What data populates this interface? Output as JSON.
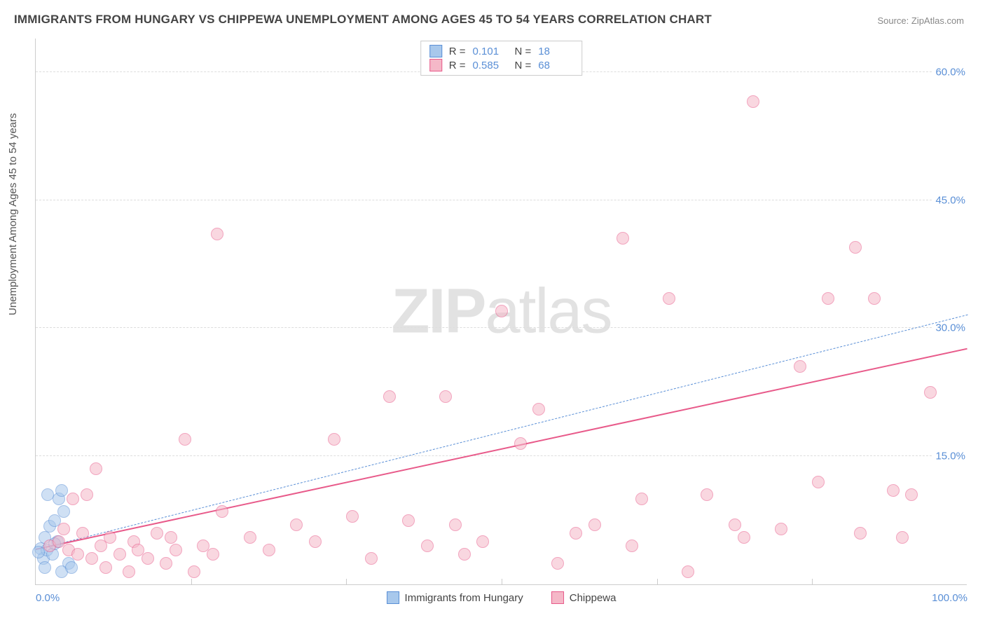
{
  "title": "IMMIGRANTS FROM HUNGARY VS CHIPPEWA UNEMPLOYMENT AMONG AGES 45 TO 54 YEARS CORRELATION CHART",
  "source": "Source: ZipAtlas.com",
  "y_axis_label": "Unemployment Among Ages 45 to 54 years",
  "watermark_bold": "ZIP",
  "watermark_thin": "atlas",
  "chart": {
    "type": "scatter",
    "xlim": [
      0,
      100
    ],
    "ylim": [
      0,
      64
    ],
    "x_ticks": [
      {
        "pos": 0,
        "label": "0.0%"
      },
      {
        "pos": 100,
        "label": "100.0%"
      }
    ],
    "x_minor_ticks": [
      16.67,
      33.33,
      50,
      66.67,
      83.33
    ],
    "y_ticks": [
      {
        "pos": 15,
        "label": "15.0%"
      },
      {
        "pos": 30,
        "label": "30.0%"
      },
      {
        "pos": 45,
        "label": "45.0%"
      },
      {
        "pos": 60,
        "label": "60.0%"
      }
    ],
    "background_color": "#ffffff",
    "grid_color": "#dddddd",
    "axis_color": "#cccccc",
    "tick_color": "#5a8fd6",
    "title_color": "#444444",
    "title_fontsize": 17,
    "label_fontsize": 15,
    "point_radius": 9,
    "point_opacity": 0.55,
    "series": [
      {
        "name": "Immigrants from Hungary",
        "color_fill": "#a8c8ec",
        "color_stroke": "#5a8fd6",
        "R": "0.101",
        "N": "18",
        "trend": {
          "x1": 0,
          "y1": 4.0,
          "x2": 100,
          "y2": 31.5,
          "dash": "6,5",
          "width": 1.5
        },
        "points": [
          [
            0.5,
            4.2
          ],
          [
            0.8,
            3.0
          ],
          [
            1.0,
            5.5
          ],
          [
            1.2,
            4.0
          ],
          [
            1.5,
            6.8
          ],
          [
            1.8,
            3.5
          ],
          [
            2.0,
            7.5
          ],
          [
            2.3,
            5.0
          ],
          [
            2.5,
            10.0
          ],
          [
            2.8,
            11.0
          ],
          [
            3.0,
            8.5
          ],
          [
            3.5,
            2.5
          ],
          [
            1.3,
            10.5
          ],
          [
            2.0,
            4.8
          ],
          [
            0.3,
            3.8
          ],
          [
            1.0,
            2.0
          ],
          [
            2.8,
            1.5
          ],
          [
            3.8,
            2.0
          ]
        ]
      },
      {
        "name": "Chippewa",
        "color_fill": "#f5b8c8",
        "color_stroke": "#e85a8a",
        "R": "0.585",
        "N": "68",
        "trend": {
          "x1": 0,
          "y1": 4.0,
          "x2": 100,
          "y2": 27.5,
          "dash": "none",
          "width": 2.5
        },
        "points": [
          [
            1.5,
            4.5
          ],
          [
            2.5,
            5.0
          ],
          [
            3.0,
            6.5
          ],
          [
            3.5,
            4.0
          ],
          [
            4.0,
            10.0
          ],
          [
            4.5,
            3.5
          ],
          [
            5.0,
            6.0
          ],
          [
            5.5,
            10.5
          ],
          [
            6.0,
            3.0
          ],
          [
            6.5,
            13.5
          ],
          [
            7.0,
            4.5
          ],
          [
            7.5,
            2.0
          ],
          [
            8.0,
            5.5
          ],
          [
            9.0,
            3.5
          ],
          [
            10.0,
            1.5
          ],
          [
            10.5,
            5.0
          ],
          [
            11.0,
            4.0
          ],
          [
            12.0,
            3.0
          ],
          [
            13.0,
            6.0
          ],
          [
            14.0,
            2.5
          ],
          [
            14.5,
            5.5
          ],
          [
            15.0,
            4.0
          ],
          [
            16.0,
            17.0
          ],
          [
            17.0,
            1.5
          ],
          [
            18.0,
            4.5
          ],
          [
            19.0,
            3.5
          ],
          [
            20.0,
            8.5
          ],
          [
            19.5,
            41.0
          ],
          [
            25.0,
            4.0
          ],
          [
            28.0,
            7.0
          ],
          [
            30.0,
            5.0
          ],
          [
            32.0,
            17.0
          ],
          [
            34.0,
            8.0
          ],
          [
            36.0,
            3.0
          ],
          [
            38.0,
            22.0
          ],
          [
            40.0,
            7.5
          ],
          [
            42.0,
            4.5
          ],
          [
            44.0,
            22.0
          ],
          [
            45.0,
            7.0
          ],
          [
            48.0,
            5.0
          ],
          [
            50.0,
            32.0
          ],
          [
            52.0,
            16.5
          ],
          [
            54.0,
            20.5
          ],
          [
            56.0,
            2.5
          ],
          [
            58.0,
            6.0
          ],
          [
            60.0,
            7.0
          ],
          [
            63.0,
            40.5
          ],
          [
            65.0,
            10.0
          ],
          [
            68.0,
            33.5
          ],
          [
            70.0,
            1.5
          ],
          [
            72.0,
            10.5
          ],
          [
            75.0,
            7.0
          ],
          [
            77.0,
            56.5
          ],
          [
            80.0,
            6.5
          ],
          [
            82.0,
            25.5
          ],
          [
            84.0,
            12.0
          ],
          [
            85.0,
            33.5
          ],
          [
            88.0,
            39.5
          ],
          [
            90.0,
            33.5
          ],
          [
            92.0,
            11.0
          ],
          [
            93.0,
            5.5
          ],
          [
            94.0,
            10.5
          ],
          [
            96.0,
            22.5
          ],
          [
            88.5,
            6.0
          ],
          [
            76.0,
            5.5
          ],
          [
            64.0,
            4.5
          ],
          [
            46.0,
            3.5
          ],
          [
            23.0,
            5.5
          ]
        ]
      }
    ],
    "legend_labels": {
      "R": "R  =",
      "N": "N  ="
    }
  }
}
